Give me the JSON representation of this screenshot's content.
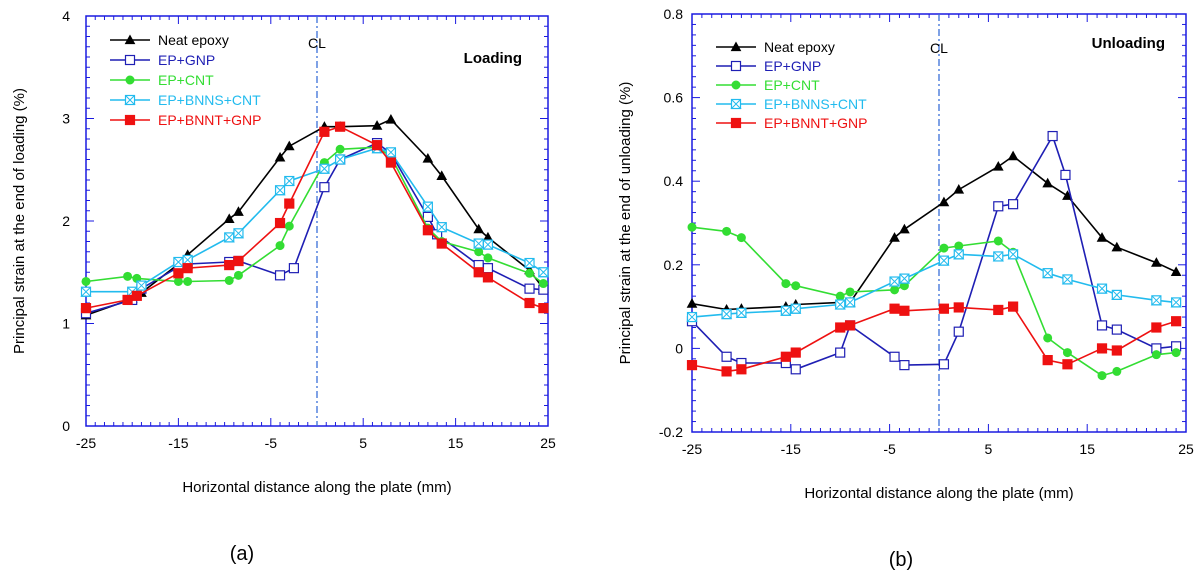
{
  "chart_data": [
    {
      "type": "line",
      "panel_label": "(a)",
      "title": "Loading",
      "xlabel": "Horizontal distance along the plate  (mm)",
      "ylabel": "Principal strain at the end of loading (%)",
      "xlim": [
        -25,
        25
      ],
      "ylim": [
        0,
        4
      ],
      "xticks": [
        -25,
        -15,
        -5,
        5,
        15,
        25
      ],
      "yticks": [
        0,
        1,
        2,
        3,
        4
      ],
      "ytick_labels": [
        "0",
        "1",
        "2",
        "3",
        "4"
      ],
      "minor_x_step": 1,
      "minor_y_step": 0.1,
      "centerline": {
        "x": 0,
        "label": "CL"
      },
      "legend_position": "top-left",
      "series": [
        {
          "name": "Neat epoxy",
          "color": "#000000",
          "marker": "triangle",
          "filled": true,
          "x": [
            -25,
            -20,
            -19,
            -15,
            -14,
            -9.5,
            -8.5,
            -4,
            -3,
            0.8,
            2.5,
            6.5,
            8,
            12,
            13.5,
            17.5,
            18.5,
            23,
            24.5
          ],
          "y": [
            1.08,
            1.24,
            1.3,
            1.58,
            1.67,
            2.02,
            2.09,
            2.62,
            2.73,
            2.92,
            2.92,
            2.93,
            2.99,
            2.61,
            2.44,
            1.92,
            1.84,
            1.52,
            1.34
          ]
        },
        {
          "name": "EP+GNP",
          "color": "#1f1fb4",
          "marker": "square",
          "filled": false,
          "x": [
            -25,
            -20,
            -19,
            -15,
            -14,
            -9.5,
            -8.5,
            -4,
            -2.5,
            0.8,
            2.5,
            6.5,
            8,
            12,
            13,
            17.5,
            18.5,
            23,
            24.5
          ],
          "y": [
            1.1,
            1.23,
            1.34,
            1.55,
            1.58,
            1.6,
            1.61,
            1.47,
            1.54,
            2.33,
            2.6,
            2.76,
            2.66,
            2.04,
            1.87,
            1.57,
            1.54,
            1.34,
            1.33
          ]
        },
        {
          "name": "EP+CNT",
          "color": "#33dd33",
          "marker": "circle",
          "filled": true,
          "x": [
            -25,
            -20.5,
            -19.5,
            -15,
            -14,
            -9.5,
            -8.5,
            -4,
            -3,
            0.8,
            2.5,
            6.5,
            8,
            12,
            13.5,
            17.5,
            18.5,
            23,
            24.5
          ],
          "y": [
            1.41,
            1.46,
            1.44,
            1.41,
            1.41,
            1.42,
            1.47,
            1.76,
            1.95,
            2.57,
            2.7,
            2.72,
            2.63,
            1.93,
            1.8,
            1.7,
            1.64,
            1.49,
            1.39
          ]
        },
        {
          "name": "EP+BNNS+CNT",
          "color": "#22bbee",
          "marker": "hourglass",
          "filled": false,
          "x": [
            -25,
            -20,
            -19,
            -15,
            -14,
            -9.5,
            -8.5,
            -4,
            -3,
            0.8,
            2.5,
            6.5,
            8,
            12,
            13.5,
            17.5,
            18.5,
            23,
            24.5
          ],
          "y": [
            1.31,
            1.31,
            1.37,
            1.6,
            1.62,
            1.84,
            1.88,
            2.3,
            2.39,
            2.51,
            2.6,
            2.71,
            2.67,
            2.14,
            1.94,
            1.78,
            1.77,
            1.59,
            1.5
          ]
        },
        {
          "name": "EP+BNNT+GNP",
          "color": "#ee1111",
          "marker": "square",
          "filled": true,
          "x": [
            -25,
            -20.5,
            -19.5,
            -15,
            -14,
            -9.5,
            -8.5,
            -4,
            -3,
            0.8,
            2.5,
            6.5,
            8,
            12,
            13.5,
            17.5,
            18.5,
            23,
            24.5
          ],
          "y": [
            1.15,
            1.23,
            1.27,
            1.49,
            1.54,
            1.57,
            1.61,
            1.98,
            2.17,
            2.87,
            2.92,
            2.74,
            2.57,
            1.91,
            1.78,
            1.5,
            1.45,
            1.2,
            1.15
          ]
        }
      ]
    },
    {
      "type": "line",
      "panel_label": "(b)",
      "title": "Unloading",
      "xlabel": "Horizontal distance along the plate  (mm)",
      "ylabel": "Principal strain at the end of unloading (%)",
      "xlim": [
        -25,
        25
      ],
      "ylim": [
        -0.2,
        0.8
      ],
      "xticks": [
        -25,
        -15,
        -5,
        5,
        15,
        25
      ],
      "yticks": [
        -0.2,
        0,
        0.2,
        0.4,
        0.6,
        0.8
      ],
      "ytick_labels": [
        "-0.2",
        "0",
        "0.2",
        "0.4",
        "0.6",
        "0.8"
      ],
      "minor_x_step": 1,
      "minor_y_step": 0.025,
      "centerline": {
        "x": 0,
        "label": "CL"
      },
      "legend_position": "top-left",
      "series": [
        {
          "name": "Neat epoxy",
          "color": "#000000",
          "marker": "triangle",
          "filled": true,
          "x": [
            -25,
            -21.5,
            -20,
            -15.5,
            -14.5,
            -10,
            -9,
            -4.5,
            -3.5,
            0.5,
            2,
            6,
            7.5,
            11,
            13,
            16.5,
            18,
            22,
            24
          ],
          "y": [
            0.107,
            0.093,
            0.095,
            0.1,
            0.105,
            0.11,
            0.11,
            0.265,
            0.285,
            0.35,
            0.38,
            0.435,
            0.46,
            0.395,
            0.365,
            0.265,
            0.242,
            0.205,
            0.183
          ]
        },
        {
          "name": "EP+GNP",
          "color": "#1f1fb4",
          "marker": "square",
          "filled": false,
          "x": [
            -25,
            -21.5,
            -20,
            -15.5,
            -14.5,
            -10,
            -9,
            -4.5,
            -3.5,
            0.5,
            2,
            6,
            7.5,
            11.5,
            12.8,
            16.5,
            18,
            22,
            24
          ],
          "y": [
            0.065,
            -0.02,
            -0.035,
            -0.035,
            -0.05,
            -0.01,
            0.055,
            -0.02,
            -0.04,
            -0.038,
            0.04,
            0.34,
            0.345,
            0.508,
            0.415,
            0.055,
            0.045,
            0.0,
            0.005
          ]
        },
        {
          "name": "EP+CNT",
          "color": "#33dd33",
          "marker": "circle",
          "filled": true,
          "x": [
            -25,
            -21.5,
            -20,
            -15.5,
            -14.5,
            -10,
            -9,
            -4.5,
            -3.5,
            0.5,
            2,
            6,
            7.5,
            11,
            13,
            16.5,
            18,
            22,
            24
          ],
          "y": [
            0.29,
            0.28,
            0.265,
            0.155,
            0.15,
            0.125,
            0.135,
            0.14,
            0.15,
            0.24,
            0.245,
            0.257,
            0.23,
            0.025,
            -0.01,
            -0.065,
            -0.055,
            -0.015,
            -0.01
          ]
        },
        {
          "name": "EP+BNNS+CNT",
          "color": "#22bbee",
          "marker": "hourglass",
          "filled": false,
          "x": [
            -25,
            -21.5,
            -20,
            -15.5,
            -14.5,
            -10,
            -9,
            -4.5,
            -3.5,
            0.5,
            2,
            6,
            7.5,
            11,
            13,
            16.5,
            18,
            22,
            24
          ],
          "y": [
            0.075,
            0.082,
            0.085,
            0.09,
            0.095,
            0.105,
            0.11,
            0.16,
            0.167,
            0.21,
            0.225,
            0.22,
            0.225,
            0.18,
            0.165,
            0.143,
            0.128,
            0.115,
            0.11
          ]
        },
        {
          "name": "EP+BNNT+GNP",
          "color": "#ee1111",
          "marker": "square",
          "filled": true,
          "x": [
            -25,
            -21.5,
            -20,
            -15.5,
            -14.5,
            -10,
            -9,
            -4.5,
            -3.5,
            0.5,
            2,
            6,
            7.5,
            11,
            13,
            16.5,
            18,
            22,
            24
          ],
          "y": [
            -0.04,
            -0.055,
            -0.05,
            -0.02,
            -0.01,
            0.05,
            0.055,
            0.095,
            0.09,
            0.095,
            0.098,
            0.092,
            0.1,
            -0.028,
            -0.038,
            0.0,
            -0.005,
            0.05,
            0.065
          ]
        }
      ]
    }
  ]
}
